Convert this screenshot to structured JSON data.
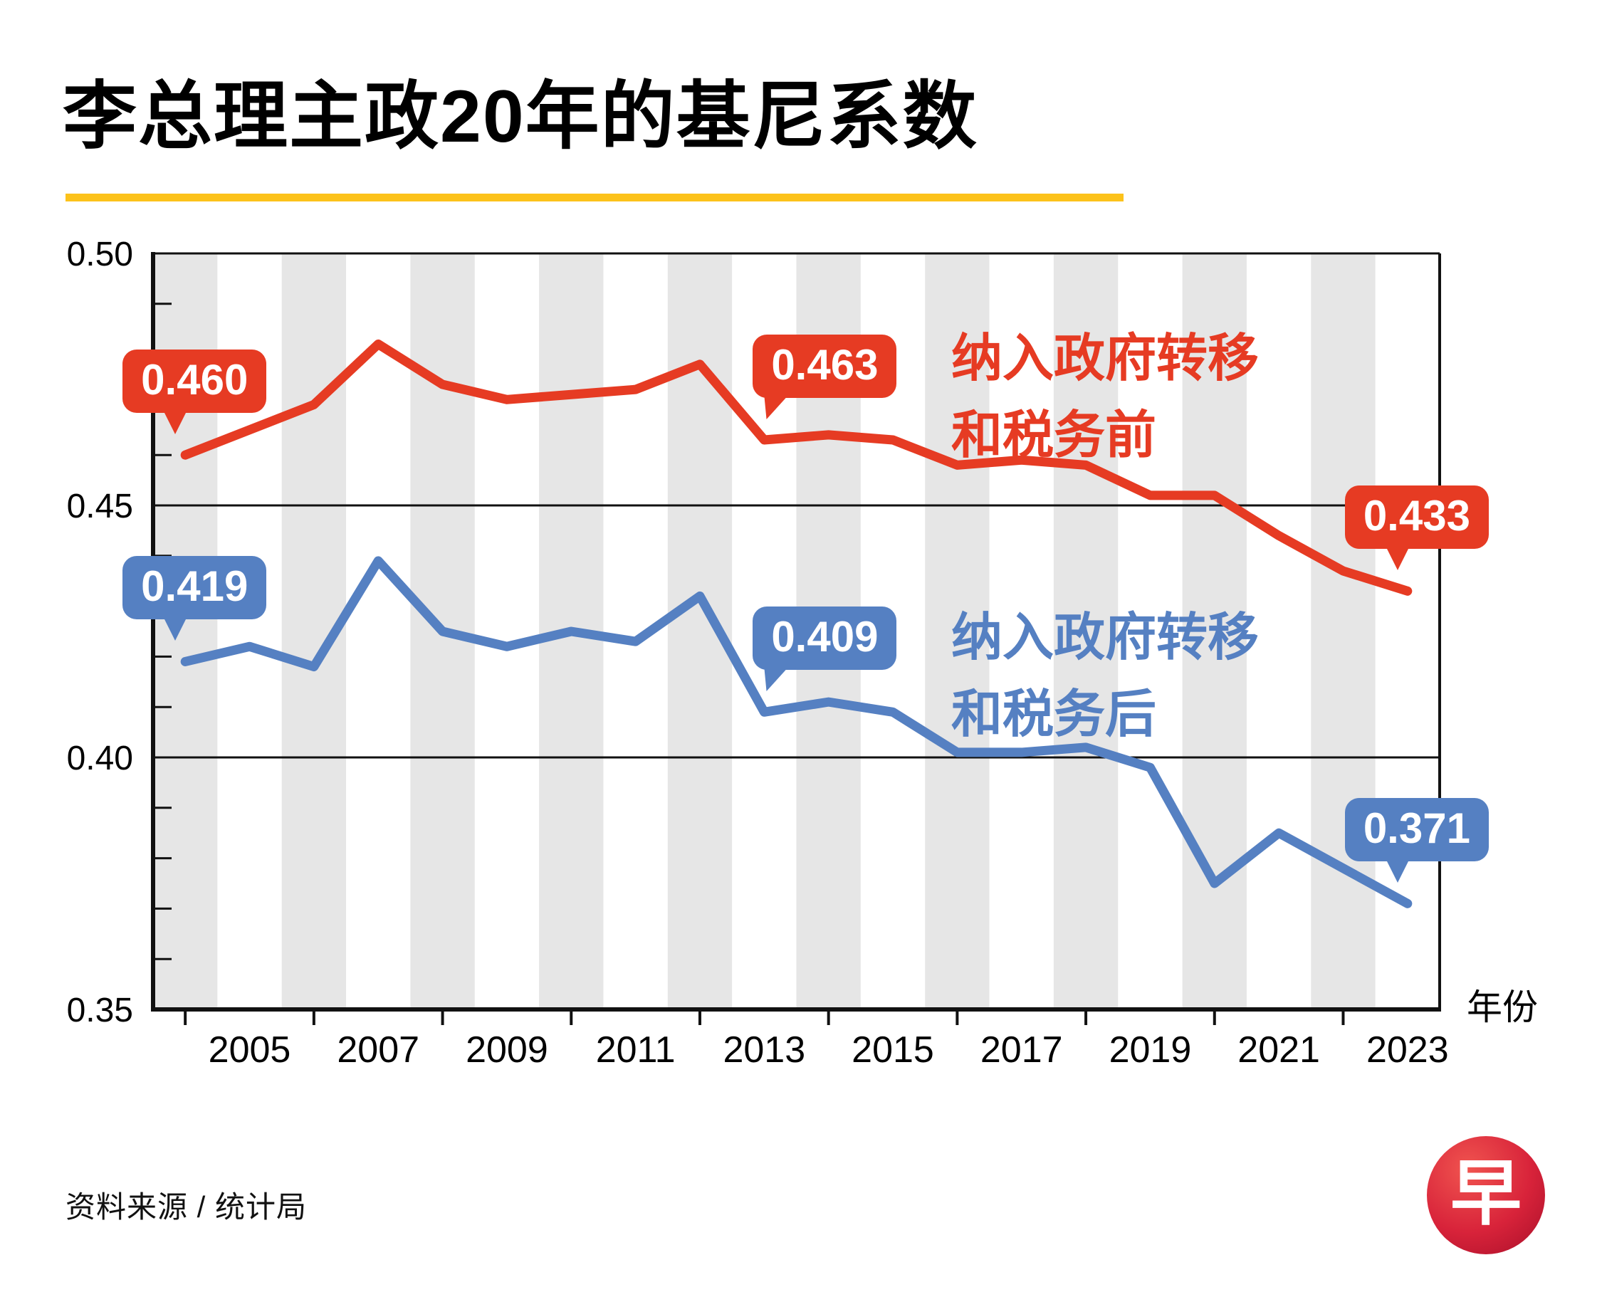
{
  "header": {
    "title": "李总理主政20年的基尼系数"
  },
  "footer": {
    "source": "资料来源 / 统计局",
    "logo_glyph": "早"
  },
  "colors": {
    "before": "#e63b23",
    "after": "#5580c2",
    "stripe": "#e6e6e6",
    "underline": "#fcc21b",
    "axis": "#111111"
  },
  "chart_data": {
    "type": "line",
    "title": "李总理主政20年的基尼系数",
    "x": [
      2004,
      2005,
      2006,
      2007,
      2008,
      2009,
      2010,
      2011,
      2012,
      2013,
      2014,
      2015,
      2016,
      2017,
      2018,
      2019,
      2020,
      2021,
      2022,
      2023
    ],
    "x_tick_labels": [
      "2005",
      "2007",
      "2009",
      "2011",
      "2013",
      "2015",
      "2017",
      "2019",
      "2021",
      "2023"
    ],
    "xlabel": "年份",
    "ylim": [
      0.35,
      0.5
    ],
    "y_tick_labels": [
      "0.50",
      "0.45",
      "0.40",
      "0.35"
    ],
    "grid_values": [
      0.45,
      0.4
    ],
    "series": [
      {
        "name": "纳入政府转移和税务前",
        "name_lines": [
          "纳入政府转移",
          "和税务前"
        ],
        "color": "#e63b23",
        "values": [
          0.46,
          0.465,
          0.47,
          0.482,
          0.474,
          0.471,
          0.472,
          0.473,
          0.478,
          0.463,
          0.464,
          0.463,
          0.458,
          0.459,
          0.458,
          0.452,
          0.452,
          0.444,
          0.437,
          0.433
        ]
      },
      {
        "name": "纳入政府转移和税务后",
        "name_lines": [
          "纳入政府转移",
          "和税务后"
        ],
        "color": "#5580c2",
        "values": [
          0.419,
          0.422,
          0.418,
          0.439,
          0.425,
          0.422,
          0.425,
          0.423,
          0.432,
          0.409,
          0.411,
          0.409,
          0.401,
          0.401,
          0.402,
          0.398,
          0.375,
          0.385,
          0.378,
          0.371
        ]
      }
    ],
    "callouts": [
      {
        "series": 0,
        "year": 2004,
        "label": "0.460",
        "align": "center"
      },
      {
        "series": 0,
        "year": 2013,
        "label": "0.463",
        "align": "side"
      },
      {
        "series": 0,
        "year": 2023,
        "label": "0.433",
        "align": "center"
      },
      {
        "series": 1,
        "year": 2004,
        "label": "0.419",
        "align": "center"
      },
      {
        "series": 1,
        "year": 2013,
        "label": "0.409",
        "align": "side"
      },
      {
        "series": 1,
        "year": 2023,
        "label": "0.371",
        "align": "center"
      }
    ]
  }
}
